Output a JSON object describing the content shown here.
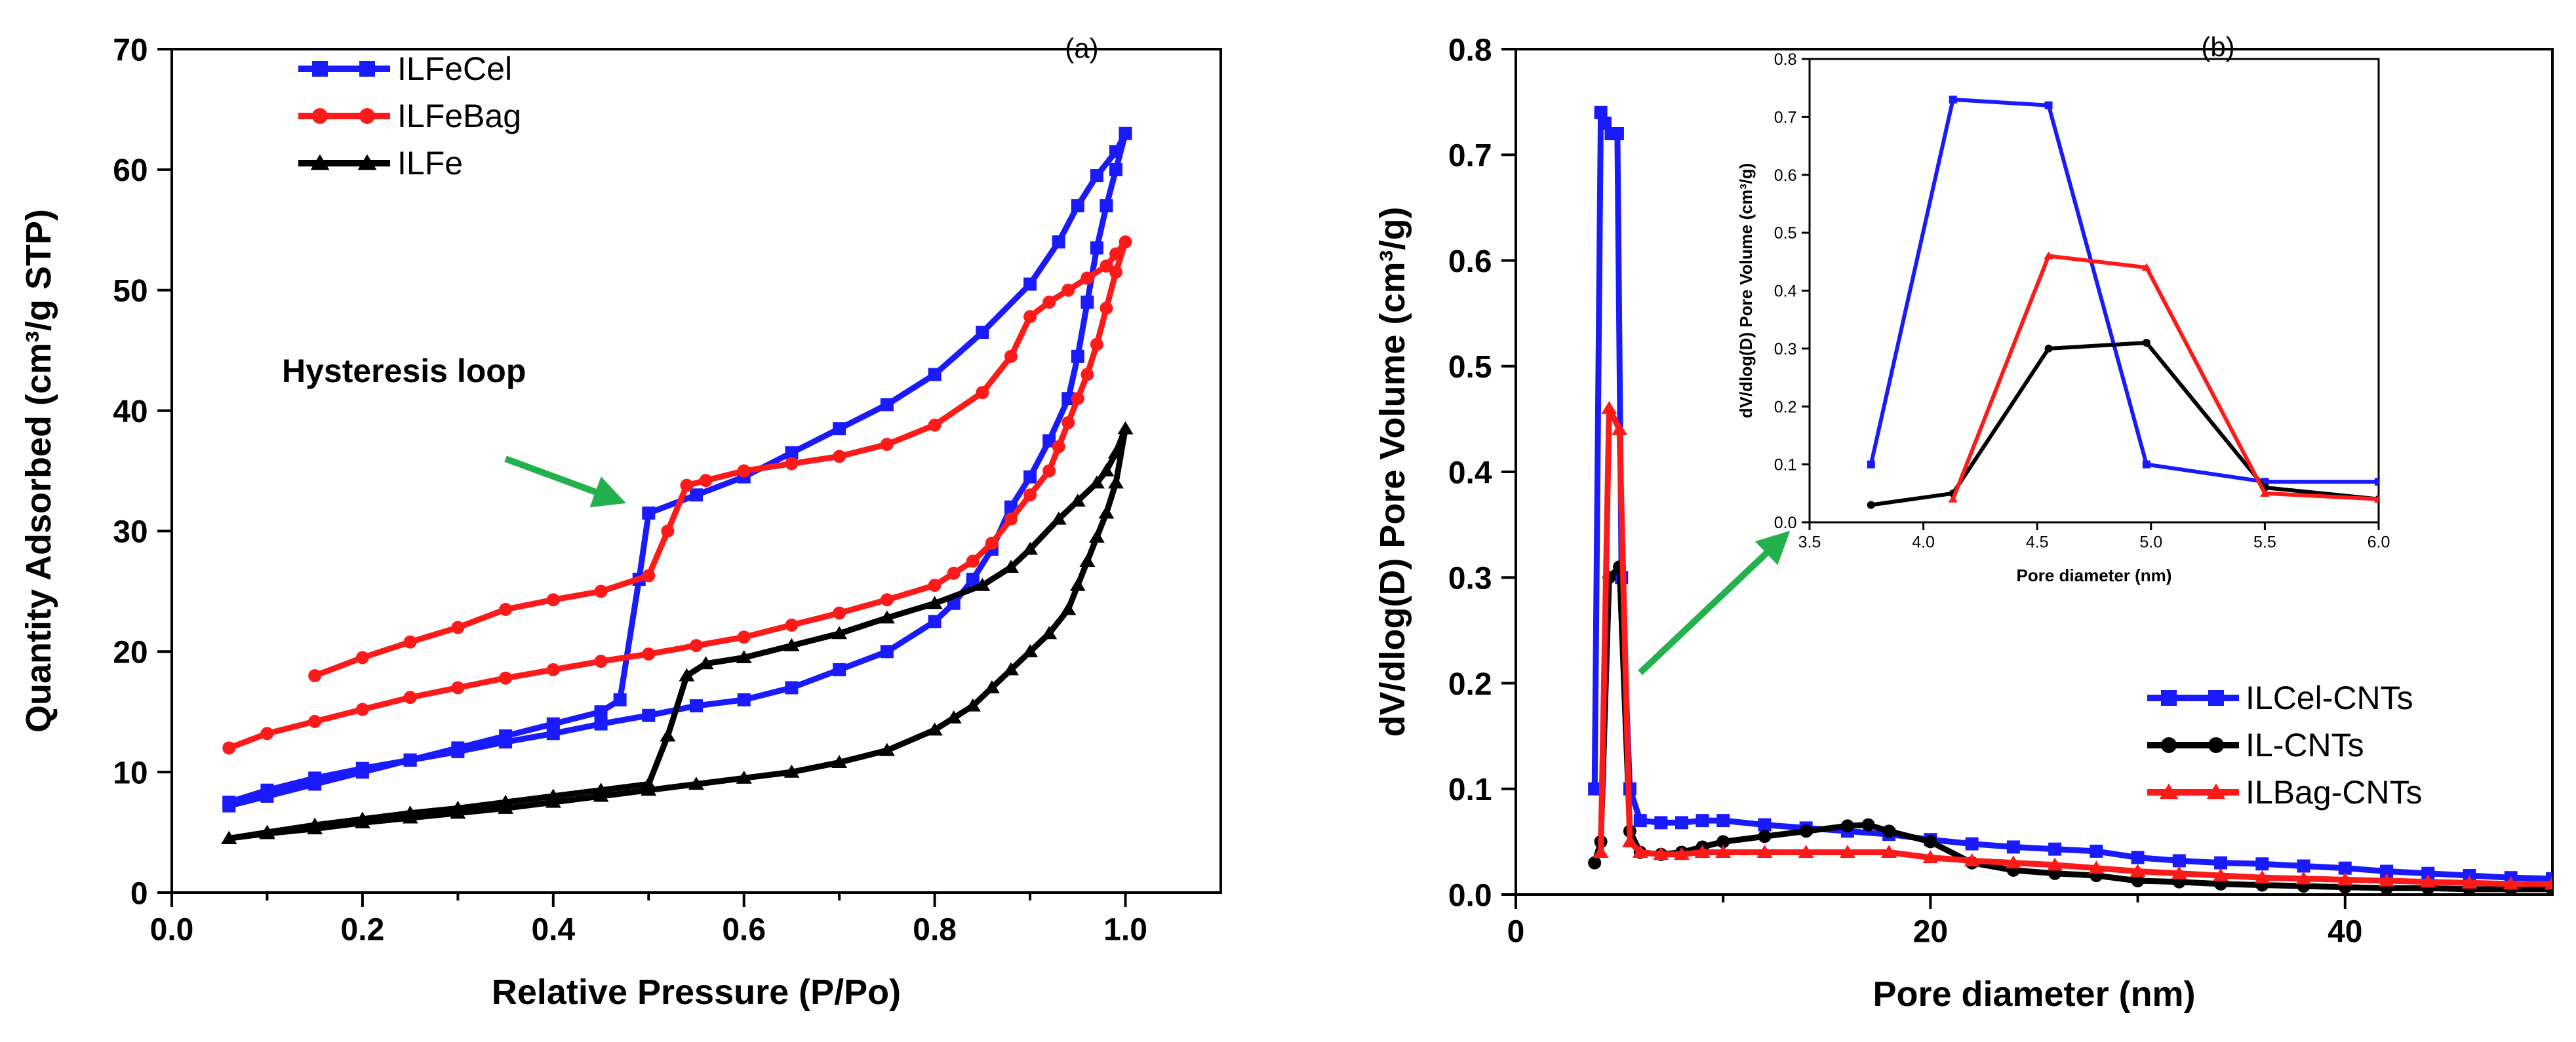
{
  "chart_data": [
    {
      "panel": "a",
      "type": "line",
      "panel_label": "(a)",
      "title": "",
      "xlabel": "Relative Pressure (P/Po)",
      "ylabel": "Quantity Adsorbed (cm³/g STP)",
      "xlim": [
        0,
        1.1
      ],
      "ylim": [
        0,
        70
      ],
      "xticks": [
        0.0,
        0.2,
        0.4,
        0.6,
        0.8,
        1.0
      ],
      "xtick_labels": [
        "0.0",
        "0.2",
        "0.4",
        "0.6",
        "0.8",
        "1.0"
      ],
      "yticks": [
        0,
        10,
        20,
        30,
        40,
        50,
        60,
        70
      ],
      "ytick_labels": [
        "0",
        "10",
        "20",
        "30",
        "40",
        "50",
        "60",
        "70"
      ],
      "annotation": {
        "text": "Hysteresis loop",
        "color": "#22b14c",
        "arrow_from": [
          0.35,
          36
        ],
        "arrow_to": [
          0.47,
          32.5
        ]
      },
      "legend_position": "top-left",
      "series": [
        {
          "name": "ILFeCel",
          "color": "#1a1aff",
          "marker": "square",
          "x": [
            0.06,
            0.1,
            0.15,
            0.2,
            0.25,
            0.3,
            0.35,
            0.4,
            0.45,
            0.47,
            0.49,
            0.5,
            0.55,
            0.6,
            0.65,
            0.7,
            0.75,
            0.8,
            0.85,
            0.9,
            0.93,
            0.95,
            0.97,
            0.99,
            1.0,
            0.99,
            0.98,
            0.97,
            0.96,
            0.95,
            0.94,
            0.92,
            0.9,
            0.88,
            0.86,
            0.84,
            0.82,
            0.8,
            0.75,
            0.7,
            0.65,
            0.6,
            0.55,
            0.5,
            0.45,
            0.4,
            0.35,
            0.3,
            0.25,
            0.2,
            0.15,
            0.1,
            0.06
          ],
          "y": [
            7.2,
            8.0,
            9.0,
            10.0,
            11.0,
            12.0,
            13.0,
            14.0,
            15.0,
            16.0,
            26.0,
            31.5,
            33.0,
            34.5,
            36.5,
            38.5,
            40.5,
            43.0,
            46.5,
            50.5,
            54.0,
            57.0,
            59.5,
            61.5,
            63.0,
            60.0,
            57.0,
            53.5,
            49.0,
            44.5,
            41.0,
            37.5,
            34.5,
            32.0,
            28.5,
            26.0,
            24.0,
            22.5,
            20.0,
            18.5,
            17.0,
            16.0,
            15.5,
            14.7,
            14.0,
            13.2,
            12.5,
            11.7,
            11.0,
            10.3,
            9.5,
            8.5,
            7.5
          ]
        },
        {
          "name": "ILFeBag",
          "color": "#ff1a1a",
          "marker": "circle",
          "x": [
            0.15,
            0.2,
            0.25,
            0.3,
            0.35,
            0.4,
            0.45,
            0.5,
            0.52,
            0.54,
            0.56,
            0.6,
            0.65,
            0.7,
            0.75,
            0.8,
            0.85,
            0.88,
            0.9,
            0.92,
            0.94,
            0.96,
            0.98,
            0.99,
            1.0,
            0.99,
            0.98,
            0.97,
            0.96,
            0.95,
            0.94,
            0.93,
            0.92,
            0.9,
            0.88,
            0.86,
            0.84,
            0.82,
            0.8,
            0.75,
            0.7,
            0.65,
            0.6,
            0.55,
            0.5,
            0.45,
            0.4,
            0.35,
            0.3,
            0.25,
            0.2,
            0.15,
            0.1,
            0.06
          ],
          "y": [
            18.0,
            19.5,
            20.8,
            22.0,
            23.5,
            24.3,
            25.0,
            26.3,
            30.0,
            33.8,
            34.2,
            35.0,
            35.6,
            36.2,
            37.2,
            38.8,
            41.5,
            44.5,
            47.8,
            49.0,
            50.0,
            51.0,
            52.0,
            53.0,
            54.0,
            51.5,
            48.5,
            45.5,
            43.0,
            41.0,
            39.0,
            37.0,
            35.0,
            33.0,
            31.0,
            29.0,
            27.5,
            26.5,
            25.5,
            24.3,
            23.2,
            22.2,
            21.2,
            20.5,
            19.8,
            19.2,
            18.5,
            17.8,
            17.0,
            16.2,
            15.2,
            14.2,
            13.2,
            12.0
          ]
        },
        {
          "name": "ILFe",
          "color": "#000000",
          "marker": "triangle",
          "x": [
            0.06,
            0.1,
            0.15,
            0.2,
            0.25,
            0.3,
            0.35,
            0.4,
            0.45,
            0.5,
            0.52,
            0.54,
            0.56,
            0.6,
            0.65,
            0.7,
            0.75,
            0.8,
            0.85,
            0.88,
            0.9,
            0.93,
            0.95,
            0.97,
            0.98,
            0.99,
            1.0,
            0.99,
            0.98,
            0.97,
            0.96,
            0.95,
            0.94,
            0.92,
            0.9,
            0.88,
            0.86,
            0.84,
            0.82,
            0.8,
            0.75,
            0.7,
            0.65,
            0.6,
            0.55,
            0.5,
            0.45,
            0.4,
            0.35,
            0.3,
            0.25,
            0.2,
            0.15,
            0.1,
            0.06
          ],
          "y": [
            4.5,
            5.0,
            5.6,
            6.1,
            6.6,
            7.0,
            7.5,
            8.0,
            8.5,
            9.0,
            13.0,
            18.0,
            19.0,
            19.5,
            20.5,
            21.5,
            22.8,
            24.0,
            25.5,
            27.0,
            28.5,
            31.0,
            32.5,
            34.0,
            35.0,
            36.5,
            38.5,
            34.0,
            31.5,
            29.5,
            27.5,
            25.5,
            23.5,
            21.5,
            20.0,
            18.5,
            17.0,
            15.5,
            14.5,
            13.5,
            11.8,
            10.8,
            10.0,
            9.5,
            9.0,
            8.5,
            8.0,
            7.5,
            7.0,
            6.6,
            6.2,
            5.8,
            5.3,
            4.9,
            4.5
          ]
        }
      ]
    },
    {
      "panel": "b",
      "type": "line",
      "panel_label": "(b)",
      "title": "",
      "xlabel": "Pore diameter (nm)",
      "ylabel": "dV/dlog(D) Pore Volume (cm³/g)",
      "xlim": [
        0,
        50
      ],
      "ylim": [
        0,
        0.8
      ],
      "xticks": [
        0,
        20,
        40
      ],
      "xtick_labels": [
        "0",
        "20",
        "40"
      ],
      "yticks": [
        0.0,
        0.1,
        0.2,
        0.3,
        0.4,
        0.5,
        0.6,
        0.7,
        0.8
      ],
      "ytick_labels": [
        "0.0",
        "0.1",
        "0.2",
        "0.3",
        "0.4",
        "0.5",
        "0.6",
        "0.7",
        "0.8"
      ],
      "legend_position": "bottom-right",
      "series": [
        {
          "name": "ILCel-CNTs",
          "color": "#1a1aff",
          "marker": "square",
          "x": [
            3.8,
            4.1,
            4.3,
            4.6,
            4.9,
            5.1,
            5.5,
            6,
            7,
            8,
            9,
            10,
            12,
            14,
            16,
            18,
            20,
            22,
            24,
            26,
            28,
            30,
            32,
            34,
            36,
            38,
            40,
            42,
            44,
            46,
            48,
            50
          ],
          "y": [
            0.1,
            0.74,
            0.73,
            0.72,
            0.72,
            0.3,
            0.1,
            0.07,
            0.068,
            0.068,
            0.07,
            0.07,
            0.066,
            0.063,
            0.06,
            0.057,
            0.052,
            0.048,
            0.045,
            0.043,
            0.041,
            0.035,
            0.032,
            0.03,
            0.029,
            0.027,
            0.025,
            0.022,
            0.02,
            0.018,
            0.016,
            0.015
          ]
        },
        {
          "name": "IL-CNTs",
          "color": "#000000",
          "marker": "circle",
          "x": [
            3.8,
            4.1,
            4.5,
            5.0,
            5.5,
            6,
            7,
            8,
            9,
            10,
            12,
            14,
            16,
            17,
            18,
            20,
            22,
            24,
            26,
            28,
            30,
            32,
            34,
            36,
            38,
            40,
            42,
            44,
            46,
            48,
            50
          ],
          "y": [
            0.03,
            0.05,
            0.3,
            0.31,
            0.06,
            0.04,
            0.038,
            0.04,
            0.045,
            0.05,
            0.055,
            0.06,
            0.065,
            0.066,
            0.06,
            0.05,
            0.03,
            0.023,
            0.02,
            0.018,
            0.013,
            0.012,
            0.01,
            0.009,
            0.008,
            0.007,
            0.006,
            0.006,
            0.005,
            0.005,
            0.005
          ]
        },
        {
          "name": "ILBag-CNTs",
          "color": "#ff1a1a",
          "marker": "triangle",
          "x": [
            4.1,
            4.5,
            5.0,
            5.5,
            6,
            7,
            8,
            9,
            10,
            12,
            14,
            16,
            18,
            20,
            22,
            24,
            26,
            28,
            30,
            32,
            34,
            36,
            38,
            40,
            42,
            44,
            46,
            48,
            50
          ],
          "y": [
            0.04,
            0.46,
            0.44,
            0.05,
            0.04,
            0.038,
            0.038,
            0.04,
            0.04,
            0.04,
            0.04,
            0.04,
            0.04,
            0.035,
            0.032,
            0.03,
            0.028,
            0.025,
            0.022,
            0.02,
            0.018,
            0.016,
            0.015,
            0.014,
            0.013,
            0.012,
            0.011,
            0.01,
            0.01
          ]
        }
      ],
      "inset": {
        "type": "line",
        "panel_label": "(b)",
        "xlabel": "Pore diameter (nm)",
        "ylabel": "dV/dlog(D) Pore Volume (cm³/g)",
        "xlim": [
          3.5,
          6.0
        ],
        "ylim": [
          0.0,
          0.8
        ],
        "xticks": [
          3.5,
          4.0,
          4.5,
          5.0,
          5.5,
          6.0
        ],
        "xtick_labels": [
          "3.5",
          "4.0",
          "4.5",
          "5.0",
          "5.5",
          "6.0"
        ],
        "yticks": [
          0.0,
          0.1,
          0.2,
          0.3,
          0.4,
          0.5,
          0.6,
          0.7,
          0.8
        ],
        "ytick_labels": [
          "0.0",
          "0.1",
          "0.2",
          "0.3",
          "0.4",
          "0.5",
          "0.6",
          "0.7",
          "0.8"
        ],
        "series": [
          {
            "name": "ILCel-CNTs",
            "color": "#1a1aff",
            "marker": "square",
            "x": [
              3.77,
              4.13,
              4.55,
              4.98,
              5.5,
              6.0
            ],
            "y": [
              0.1,
              0.73,
              0.72,
              0.1,
              0.07,
              0.07
            ]
          },
          {
            "name": "IL-CNTs",
            "color": "#000000",
            "marker": "circle",
            "x": [
              3.77,
              4.13,
              4.55,
              4.98,
              5.5,
              6.0
            ],
            "y": [
              0.03,
              0.05,
              0.3,
              0.31,
              0.06,
              0.04
            ]
          },
          {
            "name": "ILBag-CNTs",
            "color": "#ff1a1a",
            "marker": "triangle",
            "x": [
              4.13,
              4.55,
              4.98,
              5.5,
              6.0
            ],
            "y": [
              0.04,
              0.46,
              0.44,
              0.05,
              0.04
            ]
          }
        ]
      },
      "annotation": {
        "color": "#22b14c",
        "arrow_from": [
          6,
          0.21
        ],
        "arrow_to": [
          13,
          0.34
        ]
      }
    }
  ]
}
